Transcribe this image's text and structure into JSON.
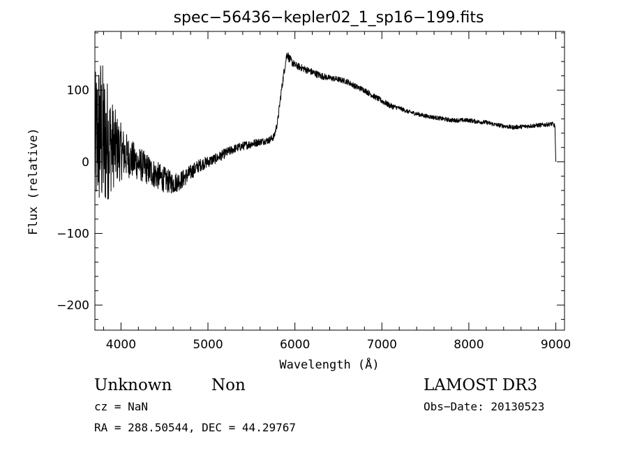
{
  "chart_data": {
    "type": "line",
    "title": "spec−56436−kepler02_1_sp16−199.fits",
    "xlabel": "Wavelength (Å)",
    "ylabel": "Flux (relative)",
    "xlim": [
      3700,
      9100
    ],
    "ylim": [
      -235,
      182
    ],
    "xticks": [
      4000,
      5000,
      6000,
      7000,
      8000,
      9000
    ],
    "xtick_labels": [
      "4000",
      "5000",
      "6000",
      "7000",
      "8000",
      "9000"
    ],
    "yticks": [
      -200,
      -100,
      0,
      100
    ],
    "ytick_labels": [
      "−200",
      "−100",
      "0",
      "100"
    ],
    "grid": false,
    "series": [
      {
        "x": [
          3700,
          3730,
          3760,
          3790,
          3820,
          3850,
          3880,
          3910,
          3950,
          4000,
          4050,
          4100,
          4200,
          4300,
          4400,
          4500,
          4600,
          4700,
          4800,
          4900,
          5000,
          5100,
          5200,
          5300,
          5400,
          5500,
          5600,
          5700,
          5760,
          5800,
          5840,
          5880,
          5910,
          5930,
          5960,
          6000,
          6100,
          6200,
          6300,
          6400,
          6500,
          6600,
          6700,
          6800,
          6900,
          7000,
          7100,
          7200,
          7300,
          7400,
          7500,
          7600,
          7700,
          7800,
          7900,
          8000,
          8100,
          8200,
          8300,
          8400,
          8500,
          8600,
          8700,
          8800,
          8900,
          8960,
          8990,
          9000
        ],
        "y": [
          20,
          35,
          40,
          30,
          30,
          30,
          25,
          22,
          18,
          14,
          10,
          5,
          -2,
          -10,
          -18,
          -25,
          -30,
          -25,
          -15,
          -5,
          0,
          5,
          12,
          18,
          22,
          25,
          28,
          30,
          35,
          55,
          95,
          130,
          152,
          145,
          140,
          135,
          130,
          125,
          120,
          117,
          115,
          112,
          105,
          100,
          92,
          85,
          78,
          75,
          70,
          67,
          64,
          62,
          60,
          58,
          58,
          58,
          56,
          55,
          52,
          50,
          48,
          49,
          50,
          51,
          52,
          53,
          50,
          0
        ],
        "noise": [
          100,
          110,
          115,
          110,
          100,
          85,
          70,
          60,
          50,
          40,
          33,
          28,
          24,
          22,
          20,
          18,
          15,
          13,
          11,
          9,
          8,
          7,
          7,
          6,
          6,
          6,
          5,
          5,
          5,
          5,
          6,
          7,
          7,
          6,
          6,
          5,
          5,
          5,
          5,
          4,
          4,
          4,
          4,
          4,
          4,
          4,
          4,
          3,
          3,
          3,
          3,
          3,
          3,
          3,
          3,
          3,
          3,
          3,
          3,
          3,
          3,
          3,
          3,
          3,
          3,
          3,
          3,
          0
        ]
      }
    ]
  },
  "labels": {
    "object_class": "Unknown",
    "object_subclass": "Non",
    "survey": "LAMOST DR3",
    "cz": "cz = NaN",
    "obs_date": "Obs−Date: 20130523",
    "coords": "RA = 288.50544, DEC =  44.29767"
  }
}
